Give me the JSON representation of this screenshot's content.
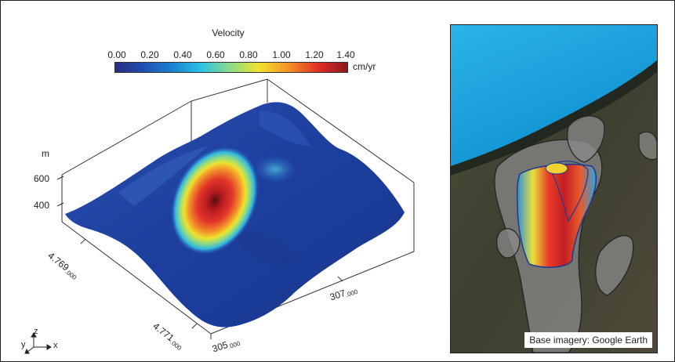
{
  "legend": {
    "title": "Velocity",
    "ticks": [
      "0.00",
      "0.20",
      "0.40",
      "0.60",
      "0.80",
      "1.00",
      "1.20",
      "1.40"
    ],
    "unit": "cm/yr",
    "colors": [
      "#2a2c84",
      "#1f4fb0",
      "#1a83d1",
      "#2bc1e6",
      "#8fdc84",
      "#f3e22c",
      "#f39026",
      "#de2b22",
      "#8a1a1f"
    ]
  },
  "surface": {
    "z_unit": "m",
    "z_ticks": [
      "600",
      "400"
    ],
    "y_ticks": [
      {
        "main": "4.769",
        "sub": ".000"
      },
      {
        "main": "4.771",
        "sub": ".000"
      }
    ],
    "x_ticks": [
      {
        "main": "307",
        "sub": ".000"
      },
      {
        "main": "305",
        "sub": ".000"
      }
    ]
  },
  "orientation": {
    "z": "z",
    "y": "y",
    "x": "x"
  },
  "map": {
    "attribution": "Base imagery: Google Earth"
  }
}
